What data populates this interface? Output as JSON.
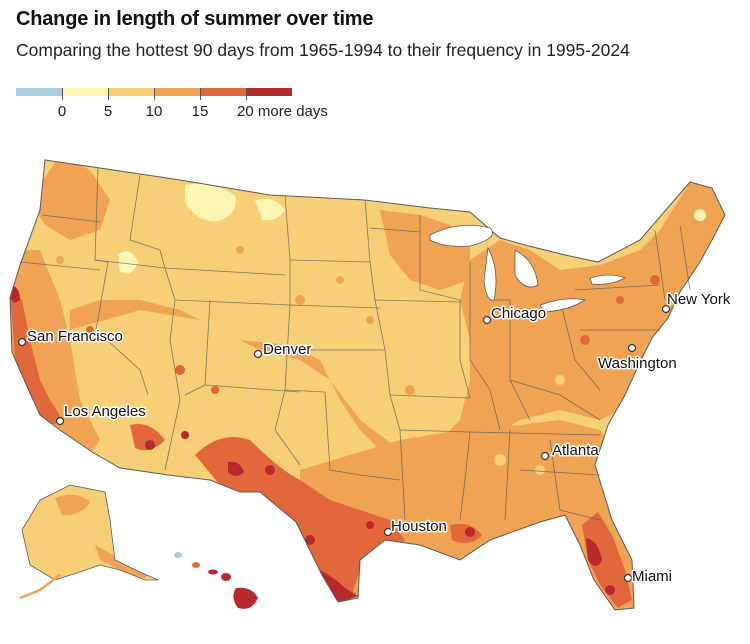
{
  "header": {
    "title": "Change in length of summer over time",
    "subtitle": "Comparing the hottest 90 days from 1965-1994 to their frequency in 1995-2024"
  },
  "legend": {
    "bins": [
      {
        "color": "#a9cde3",
        "label": "0"
      },
      {
        "color": "#fdf6b3",
        "label": "5"
      },
      {
        "color": "#f6cf76",
        "label": "10"
      },
      {
        "color": "#f0a352",
        "label": "15"
      },
      {
        "color": "#e2673a",
        "label": "20 more days"
      },
      {
        "color": "#b8282c",
        "label": ""
      }
    ]
  },
  "colors": {
    "border": "#5a5a5a",
    "light_blue": "#a9cde3",
    "pale_yellow": "#fdf6b3",
    "yellow": "#f6cf76",
    "orange": "#f0a352",
    "red_orange": "#e2673a",
    "dark_red": "#b8282c"
  },
  "cities": [
    {
      "name": "San Francisco"
    },
    {
      "name": "Los Angeles"
    },
    {
      "name": "Denver"
    },
    {
      "name": "Chicago"
    },
    {
      "name": "New York"
    },
    {
      "name": "Washington"
    },
    {
      "name": "Atlanta"
    },
    {
      "name": "Houston"
    },
    {
      "name": "Miami"
    }
  ]
}
